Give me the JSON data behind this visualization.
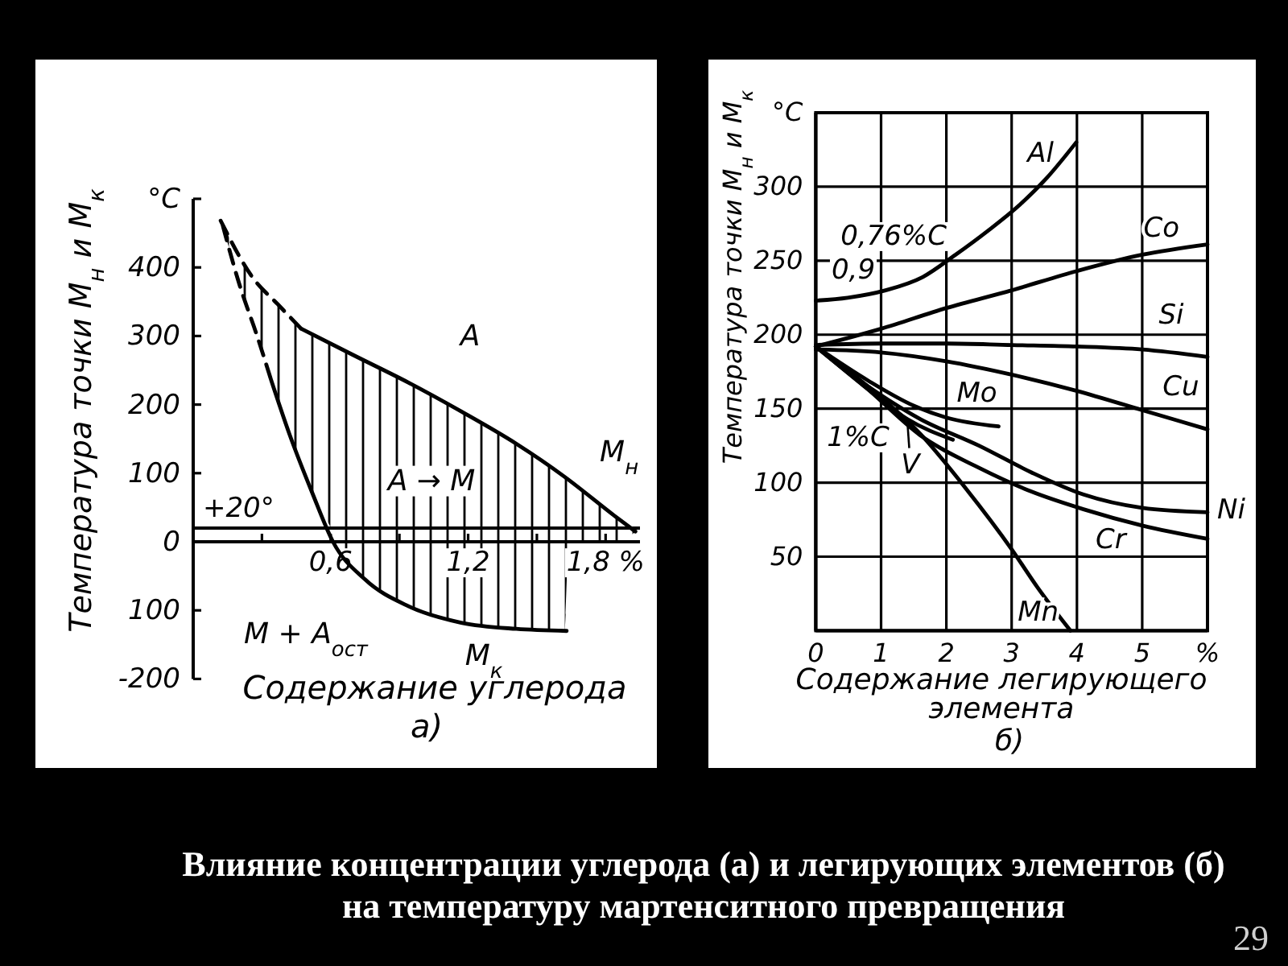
{
  "chart_data": [
    {
      "type": "line",
      "title": "а)",
      "xlabel": "Содержание углерода",
      "ylabel": "Температура точки М$_{н}$ и М$_{к}$",
      "xlim": [
        0,
        1.95
      ],
      "ylim": [
        -200,
        500
      ],
      "xticks": [
        {
          "value": 0.3,
          "label": null
        },
        {
          "value": 0.6,
          "label": "0,6"
        },
        {
          "value": 0.9,
          "label": null
        },
        {
          "value": 1.2,
          "label": "1,2"
        },
        {
          "value": 1.5,
          "label": null
        },
        {
          "value": 1.8,
          "label": "1,8 %"
        }
      ],
      "yticks": [
        -200,
        {
          "value": -100,
          "label": "100"
        },
        0,
        100,
        200,
        300,
        400,
        {
          "value": 500,
          "label": "°C"
        }
      ],
      "line_style": "solid",
      "series": [
        {
          "color": "#000000",
          "line_style": "dashed",
          "x": [
            0.12,
            0.26,
            0.37,
            0.47
          ],
          "values": [
            468,
            385,
            346,
            311
          ],
          "lower": [
            468,
            318,
            200,
            114
          ],
          "upper": [
            468,
            385,
            346,
            311
          ]
        },
        {
          "name": "М$_{н}$",
          "color": "#000000",
          "x": [
            0.47,
            0.7,
            0.94,
            1.17,
            1.41,
            1.62,
            1.64,
            1.85,
            1.93
          ],
          "values": [
            311,
            272,
            232,
            190,
            143,
            95,
            90,
            35,
            15
          ],
          "lower": [
            114,
            -35,
            -94,
            -118,
            -127,
            -130,
            0,
            0,
            15
          ],
          "upper": [
            311,
            272,
            232,
            190,
            143,
            95,
            90,
            35,
            15
          ]
        },
        {
          "color": "#000000",
          "line_style": "dashed",
          "x": [
            0.13,
            0.2,
            0.28,
            0.34
          ],
          "values": [
            460,
            377,
            299,
            236
          ]
        },
        {
          "name": "М$_{к}$",
          "color": "#000000",
          "x": [
            0.34,
            0.42,
            0.52,
            0.61,
            0.75,
            0.94,
            1.17,
            1.41,
            1.63
          ],
          "values": [
            236,
            157,
            71,
            0,
            -55,
            -94,
            -118,
            -127,
            -130
          ]
        }
      ],
      "ref_lines": [
        {
          "axis": "y",
          "value": 20,
          "label": "+20°",
          "color": "#000000"
        }
      ],
      "annotations": [
        "А",
        "А → М",
        "М + А$_{ост}$",
        "Влияние концентрации углерода (а) и легирующих элементов (б)",
        "на температуру мартенситного превращения"
      ]
    },
    {
      "type": "line",
      "title": "б)",
      "xlabel": "Содержание легирующего элемента",
      "ylabel": "Температура точки М$_{н}$ и М$_{к}$",
      "xlim": [
        0,
        6
      ],
      "ylim": [
        0,
        350
      ],
      "xticks": [
        0,
        1,
        2,
        3,
        4,
        5,
        {
          "value": 6,
          "label": "%"
        }
      ],
      "yticks": [
        50,
        100,
        150,
        200,
        250,
        300,
        {
          "value": 350,
          "label": "°C"
        }
      ],
      "grid": true,
      "line_style": "solid",
      "series": [
        {
          "name": "Al",
          "color": "#000000",
          "x": [
            0,
            0.49,
            1.07,
            1.64,
            2.14,
            2.63,
            3.13,
            3.54,
            3.99
          ],
          "values": [
            223,
            225,
            230,
            239,
            254,
            270,
            288,
            306,
            330
          ]
        },
        {
          "name": "Co",
          "color": "#000000",
          "x": [
            0,
            1,
            2,
            3,
            4,
            5,
            6
          ],
          "values": [
            192,
            204,
            218,
            230,
            243,
            254,
            261
          ]
        },
        {
          "name": "Si",
          "color": "#000000",
          "x": [
            0,
            1,
            2,
            3,
            4,
            5,
            6
          ],
          "values": [
            193,
            194,
            194,
            193,
            192,
            190,
            185
          ]
        },
        {
          "name": "Cu",
          "color": "#000000",
          "x": [
            0,
            1,
            2,
            3,
            4,
            5,
            6
          ],
          "values": [
            190,
            188,
            182,
            173,
            162,
            149,
            136
          ]
        },
        {
          "name": "Mo",
          "color": "#000000",
          "x": [
            0,
            0.8,
            1.5,
            2,
            2.8
          ],
          "values": [
            192,
            169,
            152,
            144,
            138
          ]
        },
        {
          "name": "V",
          "color": "#000000",
          "x": [
            0,
            0.75,
            1.4,
            2.1
          ],
          "values": [
            192,
            165,
            143,
            129
          ]
        },
        {
          "name": "Mn",
          "color": "#000000",
          "x": [
            0,
            0.8,
            1.6,
            2.3,
            3,
            3.4,
            3.9
          ],
          "values": [
            192,
            165,
            133,
            96,
            55,
            29,
            0
          ]
        },
        {
          "name": "Cr",
          "color": "#000000",
          "x": [
            0,
            0.8,
            1.6,
            2.5,
            3.3,
            4.1,
            5,
            6
          ],
          "values": [
            192,
            163,
            132,
            110,
            94,
            82,
            71,
            62
          ]
        },
        {
          "name": "Ni",
          "color": "#000000",
          "x": [
            0,
            0.8,
            1.6,
            2.5,
            3.3,
            4.1,
            5,
            6
          ],
          "values": [
            192,
            165,
            143,
            125,
            107,
            92,
            83,
            80
          ]
        }
      ],
      "annotations": [
        "0,76%C",
        "0,9",
        "1%C",
        "29"
      ]
    }
  ]
}
